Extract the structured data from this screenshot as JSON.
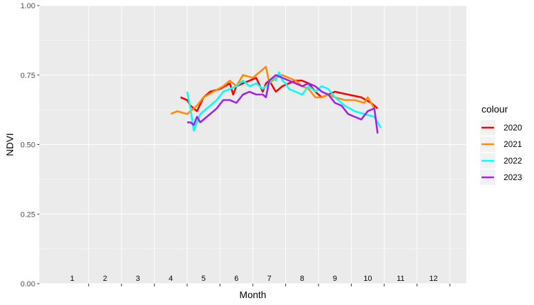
{
  "chart_data": {
    "type": "line",
    "xlabel": "Month",
    "ylabel": "NDVI",
    "xlim": [
      0,
      13
    ],
    "ylim": [
      0,
      1
    ],
    "y_ticks": [
      "0.00",
      "0.25",
      "0.50",
      "0.75",
      "1.00"
    ],
    "y_tick_values": [
      0,
      0.25,
      0.5,
      0.75,
      1.0
    ],
    "month_labels": [
      "1",
      "2",
      "3",
      "4",
      "5",
      "6",
      "7",
      "8",
      "9",
      "10",
      "11",
      "12"
    ],
    "grid": true,
    "legend_title": "colour",
    "legend_position": "right",
    "colors": {
      "2020": "#ff0000",
      "2021": "#ff8c00",
      "2022": "#00ffff",
      "2023": "#a020f0"
    },
    "panel_background": "#ebebeb",
    "series": [
      {
        "name": "2020",
        "color": "#ff0000",
        "x": [
          4.3,
          4.5,
          4.6,
          4.8,
          5.0,
          5.2,
          5.5,
          5.8,
          5.9,
          6.0,
          6.2,
          6.4,
          6.6,
          6.8,
          6.9,
          7.0,
          7.2,
          7.4,
          7.6,
          7.8,
          8.0,
          8.2,
          8.4,
          8.6,
          8.8,
          9.0,
          9.4,
          9.8,
          10.1,
          10.3
        ],
        "y": [
          0.67,
          0.66,
          0.64,
          0.62,
          0.67,
          0.69,
          0.7,
          0.72,
          0.68,
          0.71,
          0.72,
          0.73,
          0.74,
          0.69,
          0.72,
          0.73,
          0.69,
          0.71,
          0.72,
          0.73,
          0.73,
          0.72,
          0.69,
          0.67,
          0.68,
          0.69,
          0.68,
          0.67,
          0.65,
          0.63
        ]
      },
      {
        "name": "2021",
        "color": "#ff8c00",
        "x": [
          4.0,
          4.2,
          4.5,
          4.6,
          4.8,
          5.0,
          5.3,
          5.6,
          5.8,
          6.0,
          6.2,
          6.5,
          6.7,
          6.9,
          7.0,
          7.2,
          7.4,
          7.6,
          7.8,
          8.0,
          8.2,
          8.4,
          8.6,
          8.8,
          9.0,
          9.3,
          9.6,
          9.9,
          10.0,
          10.2
        ],
        "y": [
          0.61,
          0.62,
          0.61,
          0.62,
          0.64,
          0.67,
          0.69,
          0.71,
          0.73,
          0.71,
          0.75,
          0.74,
          0.76,
          0.78,
          0.72,
          0.74,
          0.75,
          0.74,
          0.73,
          0.71,
          0.7,
          0.67,
          0.67,
          0.68,
          0.67,
          0.66,
          0.66,
          0.65,
          0.67,
          0.63
        ]
      },
      {
        "name": "2022",
        "color": "#00ffff",
        "x": [
          4.5,
          4.6,
          4.7,
          4.8,
          4.9,
          5.0,
          5.2,
          5.4,
          5.6,
          5.8,
          6.0,
          6.2,
          6.4,
          6.6,
          6.8,
          7.0,
          7.1,
          7.2,
          7.3,
          7.4,
          7.5,
          7.6,
          7.8,
          8.0,
          8.2,
          8.4,
          8.6,
          8.8,
          9.0,
          9.3,
          9.6,
          9.9,
          10.2,
          10.4
        ],
        "y": [
          0.69,
          0.63,
          0.55,
          0.58,
          0.61,
          0.62,
          0.64,
          0.66,
          0.69,
          0.7,
          0.71,
          0.73,
          0.71,
          0.72,
          0.7,
          0.72,
          0.74,
          0.73,
          0.76,
          0.73,
          0.72,
          0.7,
          0.69,
          0.68,
          0.71,
          0.69,
          0.71,
          0.7,
          0.67,
          0.64,
          0.62,
          0.61,
          0.6,
          0.56
        ]
      },
      {
        "name": "2023",
        "color": "#a020f0",
        "x": [
          4.5,
          4.6,
          4.7,
          4.8,
          4.9,
          5.0,
          5.1,
          5.2,
          5.4,
          5.6,
          5.8,
          6.0,
          6.2,
          6.4,
          6.6,
          6.8,
          6.9,
          7.0,
          7.2,
          7.4,
          7.6,
          7.8,
          8.0,
          8.2,
          8.4,
          8.6,
          8.8,
          9.0,
          9.2,
          9.4,
          9.6,
          9.8,
          10.0,
          10.2,
          10.3
        ],
        "y": [
          0.58,
          0.58,
          0.57,
          0.6,
          0.58,
          0.59,
          0.6,
          0.61,
          0.63,
          0.66,
          0.66,
          0.65,
          0.68,
          0.69,
          0.68,
          0.68,
          0.67,
          0.73,
          0.75,
          0.74,
          0.73,
          0.72,
          0.71,
          0.72,
          0.71,
          0.69,
          0.68,
          0.65,
          0.64,
          0.61,
          0.6,
          0.59,
          0.62,
          0.63,
          0.54
        ]
      }
    ]
  }
}
